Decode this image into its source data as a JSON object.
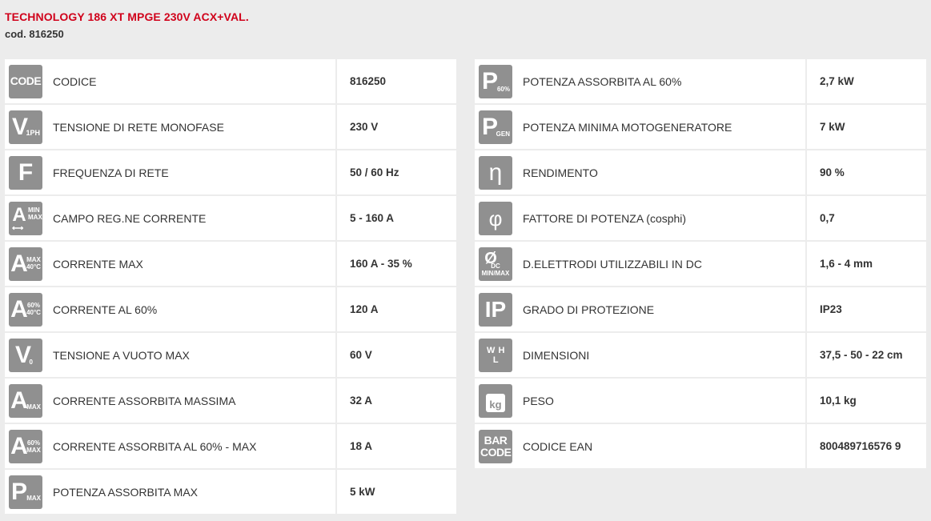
{
  "header": {
    "title": "TECHNOLOGY 186 XT MPGE 230V ACX+VAL.",
    "code": "cod. 816250"
  },
  "left": [
    {
      "icon": "code-icon",
      "glyph": "CODE",
      "label": "CODICE",
      "value": "816250"
    },
    {
      "icon": "voltage-1ph-icon",
      "glyph": "V",
      "sub": "1PH",
      "label": "TENSIONE DI RETE MONOFASE",
      "value": "230 V"
    },
    {
      "icon": "frequency-icon",
      "glyph": "F",
      "label": "FREQUENZA DI RETE",
      "value": "50 / 60 Hz"
    },
    {
      "icon": "current-range-icon",
      "glyph": "A",
      "sub": "MIN MAX",
      "label": "CAMPO REG.NE CORRENTE",
      "value": "5 - 160 A"
    },
    {
      "icon": "current-max-icon",
      "glyph": "A",
      "sub": "MAX 40°C",
      "label": "CORRENTE MAX",
      "value": "160 A - 35 %"
    },
    {
      "icon": "current-60-icon",
      "glyph": "A",
      "sub": "60% 40°C",
      "label": "CORRENTE AL 60%",
      "value": "120 A"
    },
    {
      "icon": "open-voltage-icon",
      "glyph": "V",
      "sub": "0",
      "label": "TENSIONE A VUOTO MAX",
      "value": "60 V"
    },
    {
      "icon": "absorbed-current-max-icon",
      "glyph": "A",
      "sub": "MAX",
      "label": "CORRENTE ASSORBITA MASSIMA",
      "value": "32 A"
    },
    {
      "icon": "absorbed-current-60-icon",
      "glyph": "A",
      "sub": "60% MAX",
      "label": "CORRENTE ASSORBITA AL 60% - MAX",
      "value": "18 A"
    },
    {
      "icon": "power-max-icon",
      "glyph": "P",
      "sub": "MAX",
      "label": "POTENZA ASSORBITA MAX",
      "value": "5 kW"
    }
  ],
  "right": [
    {
      "icon": "power-60-icon",
      "glyph": "P",
      "sub": "60%",
      "label": "POTENZA ASSORBITA AL 60%",
      "value": "2,7 kW"
    },
    {
      "icon": "generator-power-icon",
      "glyph": "P",
      "sub": "GEN",
      "label": "POTENZA MINIMA MOTOGENERATORE",
      "value": "7 kW"
    },
    {
      "icon": "efficiency-icon",
      "glyph": "η",
      "label": "RENDIMENTO",
      "value": "90 %"
    },
    {
      "icon": "power-factor-icon",
      "glyph": "φ",
      "label": "FATTORE DI POTENZA (cosphi)",
      "value": "0,7"
    },
    {
      "icon": "electrode-diameter-icon",
      "glyph": "Ø",
      "sub": "DC MIN/MAX",
      "label": "D.ELETTRODI UTILIZZABILI IN DC",
      "value": "1,6 - 4 mm"
    },
    {
      "icon": "ip-icon",
      "glyph": "IP",
      "label": "GRADO DI PROTEZIONE",
      "value": "IP23"
    },
    {
      "icon": "dimensions-icon",
      "glyph": "W H L",
      "label": "DIMENSIONI",
      "value": "37,5 - 50 - 22 cm"
    },
    {
      "icon": "weight-icon",
      "glyph": "kg",
      "label": "PESO",
      "value": "10,1 kg"
    },
    {
      "icon": "barcode-icon",
      "glyph": "BAR CODE",
      "label": "CODICE EAN",
      "value": "800489716576 9"
    }
  ]
}
